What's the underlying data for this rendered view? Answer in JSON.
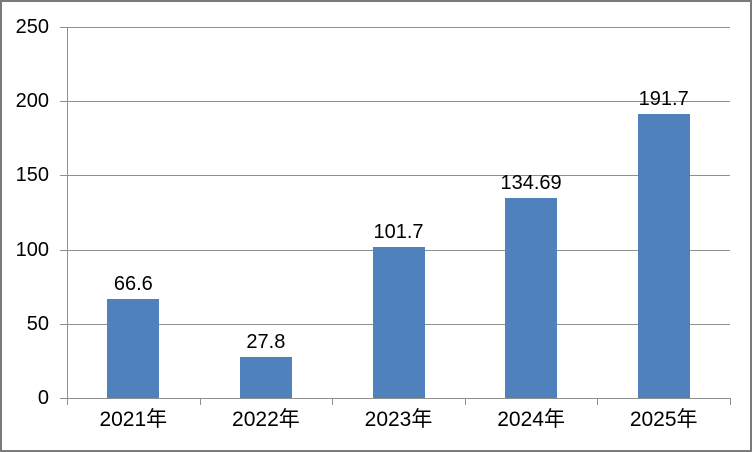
{
  "chart_data": {
    "type": "bar",
    "categories": [
      "2021年",
      "2022年",
      "2023年",
      "2024年",
      "2025年"
    ],
    "values": [
      66.6,
      27.8,
      101.7,
      134.69,
      191.7
    ],
    "value_labels": [
      "66.6",
      "27.8",
      "101.7",
      "134.69",
      "191.7"
    ],
    "title": "",
    "xlabel": "",
    "ylabel": "",
    "ylim": [
      0,
      250
    ],
    "yticks": [
      0,
      50,
      100,
      150,
      200,
      250
    ],
    "grid": true,
    "legend": "none",
    "colors": {
      "bar": "#4f81bd",
      "gridline": "#8e8e8e",
      "axis": "#8e8e8e",
      "text": "#000000",
      "chart_border": "#7a7a7a",
      "background": "#ffffff"
    }
  }
}
